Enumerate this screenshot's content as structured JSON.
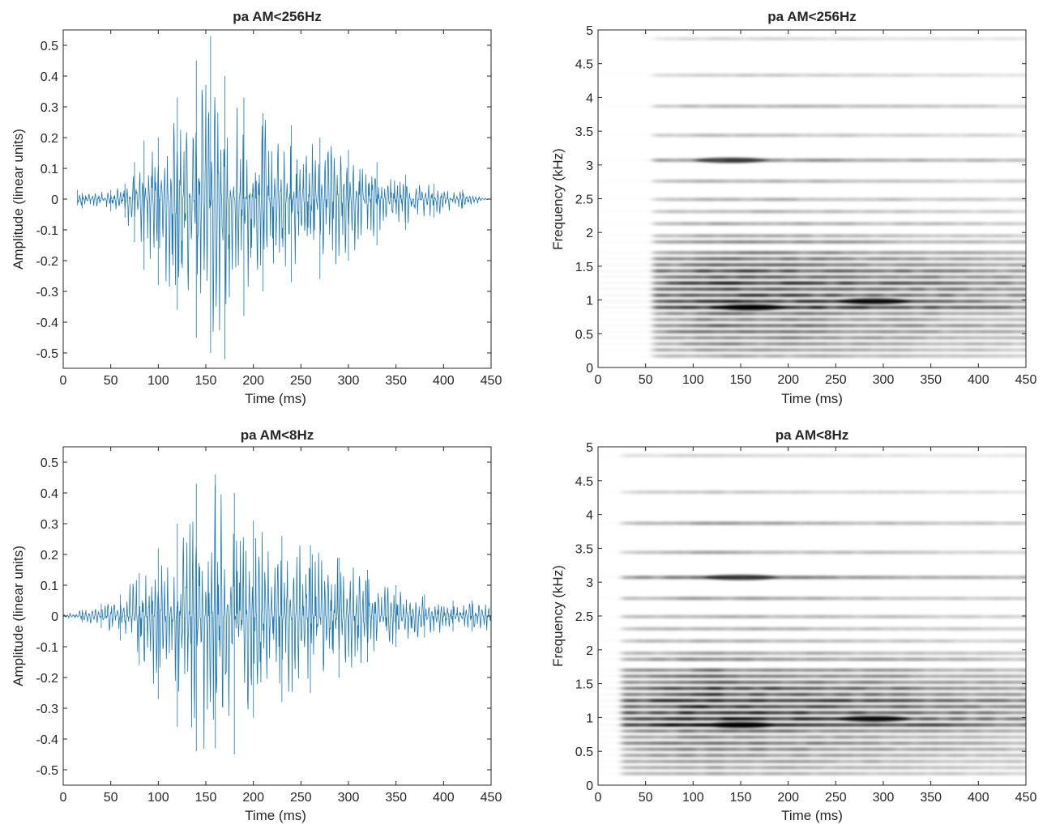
{
  "figure": {
    "panels": [
      {
        "id": "wave-top",
        "kind": "waveform",
        "title": "pa AM<256Hz"
      },
      {
        "id": "spec-top",
        "kind": "spectrogram",
        "title": "pa AM<256Hz"
      },
      {
        "id": "wave-bottom",
        "kind": "waveform",
        "title": "pa AM<8Hz"
      },
      {
        "id": "spec-bottom",
        "kind": "spectrogram",
        "title": "pa AM<8Hz"
      }
    ]
  },
  "chart_data": [
    {
      "type": "line",
      "title": "pa AM<256Hz",
      "xlabel": "Time (ms)",
      "ylabel": "Amplitude (linear units)",
      "xlim": [
        0,
        450
      ],
      "ylim": [
        -0.55,
        0.55
      ],
      "xticks": [
        0,
        50,
        100,
        150,
        200,
        250,
        300,
        350,
        400,
        450
      ],
      "yticks": [
        -0.5,
        -0.4,
        -0.3,
        -0.2,
        -0.1,
        0,
        0.1,
        0.2,
        0.3,
        0.4,
        0.5
      ],
      "color": "#1f77b4",
      "signal_start_ms": 15,
      "signal_end_ms": 450,
      "envelope": {
        "time_ms": [
          15,
          20,
          50,
          65,
          75,
          85,
          100,
          120,
          140,
          155,
          170,
          190,
          210,
          240,
          270,
          300,
          330,
          360,
          390,
          420,
          450
        ],
        "peak": [
          0.03,
          0.02,
          0.03,
          0.05,
          0.12,
          0.19,
          0.2,
          0.33,
          0.45,
          0.53,
          0.4,
          0.33,
          0.28,
          0.24,
          0.2,
          0.16,
          0.12,
          0.08,
          0.05,
          0.03,
          0.0
        ],
        "trough": [
          -0.02,
          -0.03,
          -0.04,
          -0.06,
          -0.14,
          -0.23,
          -0.28,
          -0.36,
          -0.45,
          -0.5,
          -0.52,
          -0.38,
          -0.3,
          -0.27,
          -0.26,
          -0.2,
          -0.15,
          -0.1,
          -0.06,
          -0.03,
          0.0
        ]
      }
    },
    {
      "type": "heatmap",
      "title": "pa AM<256Hz",
      "xlabel": "Time (ms)",
      "ylabel": "Frequency (kHz)",
      "xlim": [
        0,
        450
      ],
      "ylim": [
        0,
        5
      ],
      "xticks": [
        0,
        50,
        100,
        150,
        200,
        250,
        300,
        350,
        400,
        450
      ],
      "yticks": [
        0,
        0.5,
        1,
        1.5,
        2,
        2.5,
        3,
        3.5,
        4,
        4.5,
        5
      ],
      "colormap": "gray-inverted",
      "onset_ms": 58,
      "harmonic_bands_khz": [
        0.17,
        0.26,
        0.35,
        0.44,
        0.53,
        0.62,
        0.71,
        0.8,
        0.89,
        0.98,
        1.07,
        1.16,
        1.25,
        1.34,
        1.43,
        1.52,
        1.61,
        1.7,
        1.86,
        1.95,
        2.13,
        2.31,
        2.49,
        2.76,
        3.07,
        3.44,
        3.87,
        4.33,
        4.87
      ],
      "band_intensity": [
        0.35,
        0.4,
        0.45,
        0.5,
        0.55,
        0.6,
        0.5,
        0.55,
        0.95,
        0.85,
        0.8,
        0.75,
        0.85,
        0.7,
        0.75,
        0.6,
        0.55,
        0.5,
        0.45,
        0.35,
        0.35,
        0.3,
        0.3,
        0.3,
        0.45,
        0.25,
        0.3,
        0.2,
        0.15
      ],
      "hotspots": [
        {
          "time_ms": 160,
          "freq_khz": 0.89,
          "level": 1.0
        },
        {
          "time_ms": 290,
          "freq_khz": 0.98,
          "level": 0.9
        },
        {
          "time_ms": 140,
          "freq_khz": 3.07,
          "level": 0.6
        }
      ]
    },
    {
      "type": "line",
      "title": "pa AM<8Hz",
      "xlabel": "Time (ms)",
      "ylabel": "Amplitude (linear units)",
      "xlim": [
        0,
        450
      ],
      "ylim": [
        -0.55,
        0.55
      ],
      "xticks": [
        0,
        50,
        100,
        150,
        200,
        250,
        300,
        350,
        400,
        450
      ],
      "yticks": [
        -0.5,
        -0.4,
        -0.3,
        -0.2,
        -0.1,
        0,
        0.1,
        0.2,
        0.3,
        0.4,
        0.5
      ],
      "color": "#1f77b4",
      "signal_start_ms": 0,
      "signal_end_ms": 450,
      "envelope": {
        "time_ms": [
          0,
          20,
          40,
          60,
          80,
          100,
          120,
          140,
          160,
          180,
          200,
          230,
          260,
          290,
          320,
          350,
          380,
          410,
          430,
          450
        ],
        "peak": [
          0.01,
          0.02,
          0.04,
          0.07,
          0.14,
          0.22,
          0.3,
          0.43,
          0.46,
          0.4,
          0.31,
          0.26,
          0.23,
          0.19,
          0.15,
          0.1,
          0.07,
          0.05,
          0.05,
          0.05
        ],
        "trough": [
          -0.01,
          -0.02,
          -0.04,
          -0.08,
          -0.16,
          -0.27,
          -0.36,
          -0.44,
          -0.43,
          -0.45,
          -0.33,
          -0.28,
          -0.25,
          -0.2,
          -0.15,
          -0.1,
          -0.07,
          -0.05,
          -0.05,
          -0.05
        ]
      }
    },
    {
      "type": "heatmap",
      "title": "pa AM<8Hz",
      "xlabel": "Time (ms)",
      "ylabel": "Frequency (kHz)",
      "xlim": [
        0,
        450
      ],
      "ylim": [
        0,
        5
      ],
      "xticks": [
        0,
        50,
        100,
        150,
        200,
        250,
        300,
        350,
        400,
        450
      ],
      "yticks": [
        0,
        0.5,
        1,
        1.5,
        2,
        2.5,
        3,
        3.5,
        4,
        4.5,
        5
      ],
      "colormap": "gray-inverted",
      "onset_ms": 25,
      "harmonic_bands_khz": [
        0.17,
        0.26,
        0.35,
        0.44,
        0.53,
        0.62,
        0.71,
        0.8,
        0.89,
        0.98,
        1.07,
        1.16,
        1.25,
        1.34,
        1.43,
        1.52,
        1.61,
        1.7,
        1.86,
        1.95,
        2.13,
        2.31,
        2.49,
        2.76,
        3.07,
        3.44,
        3.87,
        4.33,
        4.87
      ],
      "band_intensity": [
        0.3,
        0.35,
        0.4,
        0.45,
        0.5,
        0.55,
        0.45,
        0.55,
        1.0,
        0.9,
        0.85,
        0.8,
        0.9,
        0.7,
        0.75,
        0.6,
        0.55,
        0.5,
        0.45,
        0.35,
        0.3,
        0.3,
        0.3,
        0.35,
        0.5,
        0.3,
        0.35,
        0.2,
        0.15
      ],
      "hotspots": [
        {
          "time_ms": 150,
          "freq_khz": 0.89,
          "level": 1.0
        },
        {
          "time_ms": 290,
          "freq_khz": 0.98,
          "level": 0.9
        },
        {
          "time_ms": 150,
          "freq_khz": 3.07,
          "level": 0.6
        }
      ]
    }
  ]
}
